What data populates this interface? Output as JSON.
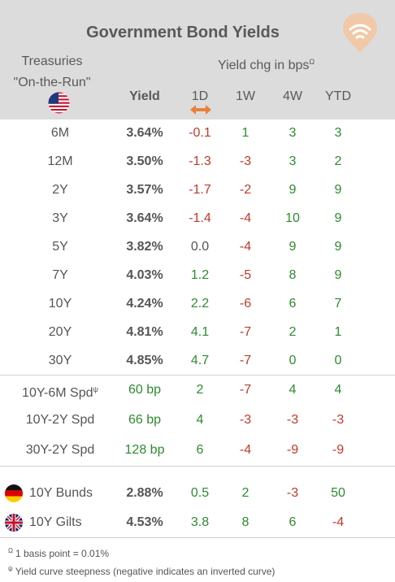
{
  "title": "Government Bond Yields",
  "treasuries_line1": "Treasuries",
  "treasuries_line2": "\"On-the-Run\"",
  "yield_chg_label": "Yield chg in bps",
  "yield_chg_marker": "Ω",
  "columns": {
    "yield": "Yield",
    "d1": "1D",
    "w1": "1W",
    "w4": "4W",
    "ytd": "YTD"
  },
  "treasuries": [
    {
      "label": "6M",
      "yield": "3.64%",
      "d1": "-0.1",
      "w1": "1",
      "w4": "3",
      "ytd": "3"
    },
    {
      "label": "12M",
      "yield": "3.50%",
      "d1": "-1.3",
      "w1": "-3",
      "w4": "3",
      "ytd": "2"
    },
    {
      "label": "2Y",
      "yield": "3.57%",
      "d1": "-1.7",
      "w1": "-2",
      "w4": "9",
      "ytd": "9"
    },
    {
      "label": "3Y",
      "yield": "3.64%",
      "d1": "-1.4",
      "w1": "-4",
      "w4": "10",
      "ytd": "9"
    },
    {
      "label": "5Y",
      "yield": "3.82%",
      "d1": "0.0",
      "w1": "-4",
      "w4": "9",
      "ytd": "9"
    },
    {
      "label": "7Y",
      "yield": "4.03%",
      "d1": "1.2",
      "w1": "-5",
      "w4": "8",
      "ytd": "9"
    },
    {
      "label": "10Y",
      "yield": "4.24%",
      "d1": "2.2",
      "w1": "-6",
      "w4": "6",
      "ytd": "7"
    },
    {
      "label": "20Y",
      "yield": "4.81%",
      "d1": "4.1",
      "w1": "-7",
      "w4": "2",
      "ytd": "1"
    },
    {
      "label": "30Y",
      "yield": "4.85%",
      "d1": "4.7",
      "w1": "-7",
      "w4": "0",
      "ytd": "0"
    }
  ],
  "spreads": [
    {
      "label": "10Y-6M Spd",
      "marker": "ψ",
      "yield": "60 bp",
      "d1": "2",
      "w1": "-7",
      "w4": "4",
      "ytd": "4"
    },
    {
      "label": "10Y-2Y Spd",
      "marker": "",
      "yield": "66 bp",
      "d1": "4",
      "w1": "-3",
      "w4": "-3",
      "ytd": "-3"
    },
    {
      "label": "30Y-2Y Spd",
      "marker": "",
      "yield": "128 bp",
      "d1": "6",
      "w1": "-4",
      "w4": "-9",
      "ytd": "-9"
    }
  ],
  "intl": [
    {
      "label": "10Y Bunds",
      "flag": "germany-flag-icon",
      "yield": "2.88%",
      "d1": "0.5",
      "w1": "2",
      "w4": "-3",
      "ytd": "50"
    },
    {
      "label": "10Y Gilts",
      "flag": "uk-flag-icon",
      "yield": "4.53%",
      "d1": "3.8",
      "w1": "8",
      "w4": "6",
      "ytd": "-4"
    }
  ],
  "footnotes": [
    {
      "marker": "Ω",
      "text": "1 basis point = 0.01%"
    },
    {
      "marker": "ψ",
      "text": "Yield curve steepness (negative indicates an inverted curve)"
    }
  ],
  "colors": {
    "header_bg": "#dcdcdc",
    "negative": "#c0392b",
    "positive": "#2e8b2e",
    "accent_orange": "#e8823a"
  },
  "icons": {
    "logo": "wifi-signal-logo-icon",
    "us_flag": "us-flag-icon",
    "arrow": "double-arrow-icon"
  }
}
